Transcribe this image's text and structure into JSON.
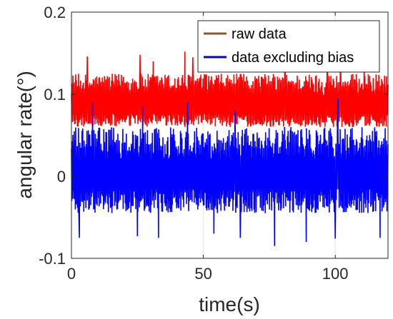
{
  "chart_data": {
    "type": "line",
    "title": "",
    "xlabel": "time(s)",
    "ylabel": "angular rate(°)",
    "xlim": [
      0,
      120
    ],
    "ylim": [
      -0.1,
      0.2
    ],
    "x_ticks": [
      0,
      50,
      100
    ],
    "y_ticks": [
      -0.1,
      0,
      0.1,
      0.2
    ],
    "x_tick_labels": [
      "0",
      "50",
      "100"
    ],
    "y_tick_labels": [
      "-0.1",
      "0",
      "0.1",
      "0.2"
    ],
    "grid": true,
    "legend_position": "top-right",
    "series": [
      {
        "name": "raw data",
        "legend_color": "#8B5A2B",
        "plot_color": "#FF0000",
        "mean": 0.085,
        "band": [
          0.06,
          0.125
        ],
        "peaks": [
          [
            6,
            0.146
          ],
          [
            26,
            0.148
          ],
          [
            31,
            0.14
          ],
          [
            43,
            0.152
          ],
          [
            46,
            0.145
          ],
          [
            81,
            0.147
          ],
          [
            97,
            0.144
          ],
          [
            102,
            0.15
          ],
          [
            111,
            0.143
          ]
        ],
        "troughs": []
      },
      {
        "name": "data excluding bias",
        "legend_color": "#0000CC",
        "plot_color": "#0000FF",
        "mean": 0.0,
        "band": [
          -0.045,
          0.06
        ],
        "peaks": [
          [
            8,
            0.09
          ],
          [
            27,
            0.085
          ],
          [
            44,
            0.09
          ],
          [
            62,
            0.08
          ],
          [
            101,
            0.095
          ]
        ],
        "troughs": [
          [
            3,
            -0.075
          ],
          [
            25,
            -0.073
          ],
          [
            33,
            -0.075
          ],
          [
            54,
            -0.07
          ],
          [
            64,
            -0.075
          ],
          [
            77,
            -0.085
          ],
          [
            89,
            -0.08
          ],
          [
            100,
            -0.076
          ],
          [
            117,
            -0.075
          ]
        ]
      }
    ]
  },
  "colors": {
    "axis": "#262626",
    "grid": "#e6e6e6",
    "background": "#ffffff"
  }
}
